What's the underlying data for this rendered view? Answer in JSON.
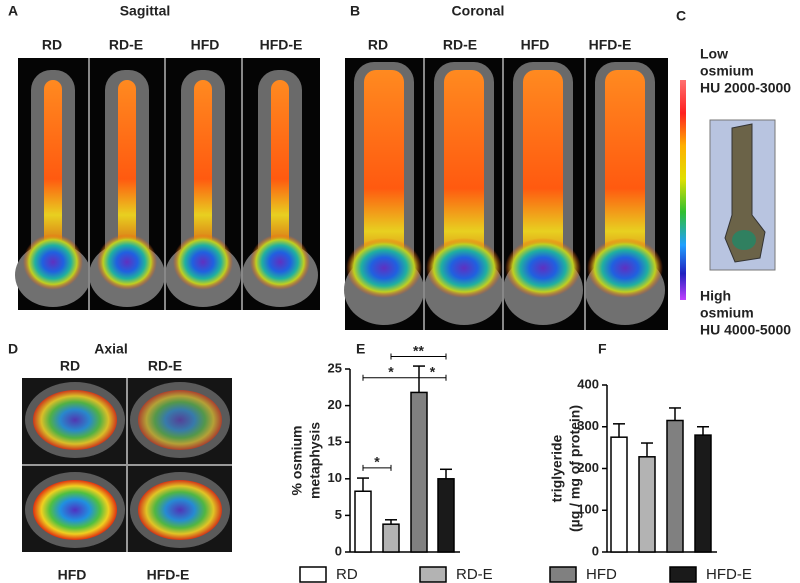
{
  "panels": {
    "A": {
      "letter": "A",
      "title": "Sagittal",
      "labels": [
        "RD",
        "RD-E",
        "HFD",
        "HFD-E"
      ]
    },
    "B": {
      "letter": "B",
      "title": "Coronal",
      "labels": [
        "RD",
        "RD-E",
        "HFD",
        "HFD-E"
      ]
    },
    "C": {
      "letter": "C",
      "low": [
        "Low",
        "osmium",
        "HU 2000-3000"
      ],
      "high": [
        "High",
        "osmium",
        "HU 4000-5000"
      ]
    },
    "D": {
      "letter": "D",
      "title": "Axial",
      "labels": [
        "RD",
        "RD-E",
        "HFD",
        "HFD-E"
      ]
    },
    "E": {
      "letter": "E"
    },
    "F": {
      "letter": "F"
    }
  },
  "chart_data": [
    {
      "type": "bar",
      "ylabel": [
        "% osmium",
        "metaphysis"
      ],
      "categories": [
        "RD",
        "RD-E",
        "HFD",
        "HFD-E"
      ],
      "values": [
        8.3,
        3.8,
        21.8,
        10
      ],
      "errors": [
        1.8,
        0.6,
        3.6,
        1.3
      ],
      "colors": [
        "#ffffff",
        "#b3b3b3",
        "#808080",
        "#1a1a1a"
      ],
      "ylim": [
        0,
        25
      ],
      "yticks": [
        0,
        5,
        10,
        15,
        20,
        25
      ],
      "annotations": [
        "*",
        "*",
        "**",
        "*"
      ],
      "legend": "bottom"
    },
    {
      "type": "bar",
      "ylabel": [
        "triglyeride",
        "(µg / mg of protein)"
      ],
      "categories": [
        "RD",
        "RD-E",
        "HFD",
        "HFD-E"
      ],
      "values": [
        275,
        228,
        315,
        280
      ],
      "errors": [
        32,
        33,
        30,
        20
      ],
      "colors": [
        "#ffffff",
        "#b3b3b3",
        "#808080",
        "#1a1a1a"
      ],
      "ylim": [
        0,
        400
      ],
      "yticks": [
        0,
        100,
        200,
        300,
        400
      ]
    }
  ]
}
